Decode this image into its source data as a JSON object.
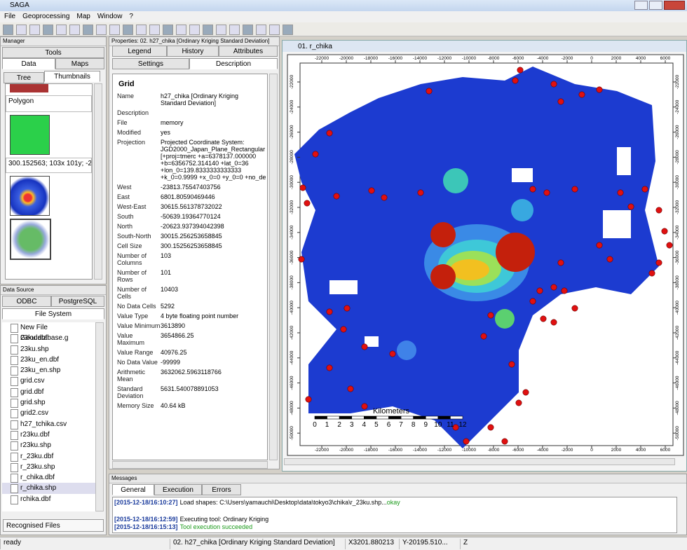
{
  "window": {
    "title": "SAGA"
  },
  "menu": [
    "File",
    "Geoprocessing",
    "Map",
    "Window",
    "?"
  ],
  "manager": {
    "title": "Manager",
    "tabs": [
      "Tools",
      "Data",
      "Maps"
    ],
    "subtabs": [
      "Tree",
      "Thumbnails"
    ],
    "items": [
      "Polygon",
      "300.152563; 103x 101y; -2"
    ]
  },
  "properties": {
    "title": "Properties: 02. h27_chika [Ordinary Kriging Standard Deviation]",
    "tabs": [
      "Legend",
      "History",
      "Attributes",
      "Settings",
      "Description"
    ],
    "heading": "Grid",
    "rows": [
      {
        "label": "Name",
        "value": "h27_chika [Ordinary Kriging Standard Deviation]"
      },
      {
        "label": "Description"
      },
      {
        "label": "File",
        "value": "memory"
      },
      {
        "label": "Modified",
        "value": "yes"
      },
      {
        "label": "Projection",
        "value": [
          "Projected Coordinate System:",
          "JGD2000_Japan_Plane_Rectangular",
          "[+proj=tmerc +a=6378137.000000",
          "+b=6356752.314140 +lat_0=36",
          "+lon_0=139.8333333333333",
          "+k_0=0.9999 +x_0=0 +y_0=0 +no_de"
        ]
      },
      {
        "label": "West",
        "value": "-23813.75547403756"
      },
      {
        "label": "East",
        "value": "6801.80590469446"
      },
      {
        "label": "West-East",
        "value": "30615.561378732022"
      },
      {
        "label": "South",
        "value": "-50639.19364770124"
      },
      {
        "label": "North",
        "value": "-20623.937394042398"
      },
      {
        "label": "South-North",
        "value": "30015.256253658845"
      },
      {
        "label": "Cell Size",
        "value": "300.15256253658845"
      },
      {
        "label": "Number of Columns",
        "value": "103"
      },
      {
        "label": "Number of Rows",
        "value": "101"
      },
      {
        "label": "Number of Cells",
        "value": "10403"
      },
      {
        "label": "No Data Cells",
        "value": "5292"
      },
      {
        "label": "Value Type",
        "value": "4 byte floating point number"
      },
      {
        "label": "Value Minimum",
        "value": "3613890"
      },
      {
        "label": "Value Maximum",
        "value": "3654866.25"
      },
      {
        "label": "Value Range",
        "value": "40976.25"
      },
      {
        "label": "No Data Value",
        "value": "-99999"
      },
      {
        "label": "Arithmetic Mean",
        "value": "3632062.5963118766"
      },
      {
        "label": "Standard Deviation",
        "value": "5631.540078891053"
      },
      {
        "label": "Memory Size",
        "value": "40.64 kB"
      }
    ]
  },
  "data_source": {
    "title": "Data Source",
    "tabs": [
      "ODBC",
      "PostgreSQL",
      "File System"
    ],
    "files": [
      "New File Geodatabase.g",
      "23ku.dbf",
      "23ku.shp",
      "23ku_en.dbf",
      "23ku_en.shp",
      "grid.csv",
      "grid.dbf",
      "grid.shp",
      "grid2.csv",
      "h27_tchika.csv",
      "r23ku.dbf",
      "r23ku.shp",
      "r_23ku.dbf",
      "r_23ku.shp",
      "r_chika.dbf",
      "r_chika.shp",
      "rchika.dbf"
    ],
    "filter": "Recognised Files"
  },
  "map": {
    "title": "01. r_chika",
    "xticks": [
      -22000,
      -20000,
      -18000,
      -16000,
      -14000,
      -12000,
      -10000,
      -8000,
      -6000,
      -4000,
      -2000,
      0,
      2000,
      4000,
      6000
    ],
    "yticks": [
      -22000,
      -24000,
      -26000,
      -28000,
      -30000,
      -32000,
      -34000,
      -36000,
      -38000,
      -40000,
      -42000,
      -44000,
      -46000,
      -48000,
      -50000
    ],
    "scale_title": "Kilometers",
    "scale_ticks": [
      0,
      1,
      2,
      3,
      4,
      5,
      6,
      7,
      8,
      9,
      10,
      11,
      12
    ]
  },
  "messages": {
    "title": "Messages",
    "tabs": [
      "General",
      "Execution",
      "Errors"
    ],
    "lines": [
      {
        "time": "[2015-12-18/16:10:27]",
        "text": "Load shapes: C:\\Users\\yamauchi\\Desktop\\data\\tokyo3\\chika\\r_23ku.shp...",
        "status": "okay"
      },
      {
        "time": "[2015-12-18/16:12:59]",
        "text": "Executing tool: Ordinary Kriging"
      },
      {
        "time": "[2015-12-18/16:15:13]",
        "status": "Tool execution succeeded"
      }
    ]
  },
  "status_bar": [
    "ready",
    "02. h27_chika [Ordinary Kriging Standard Deviation]",
    "X3201.880213",
    "Y-20195.510...",
    "Z"
  ]
}
